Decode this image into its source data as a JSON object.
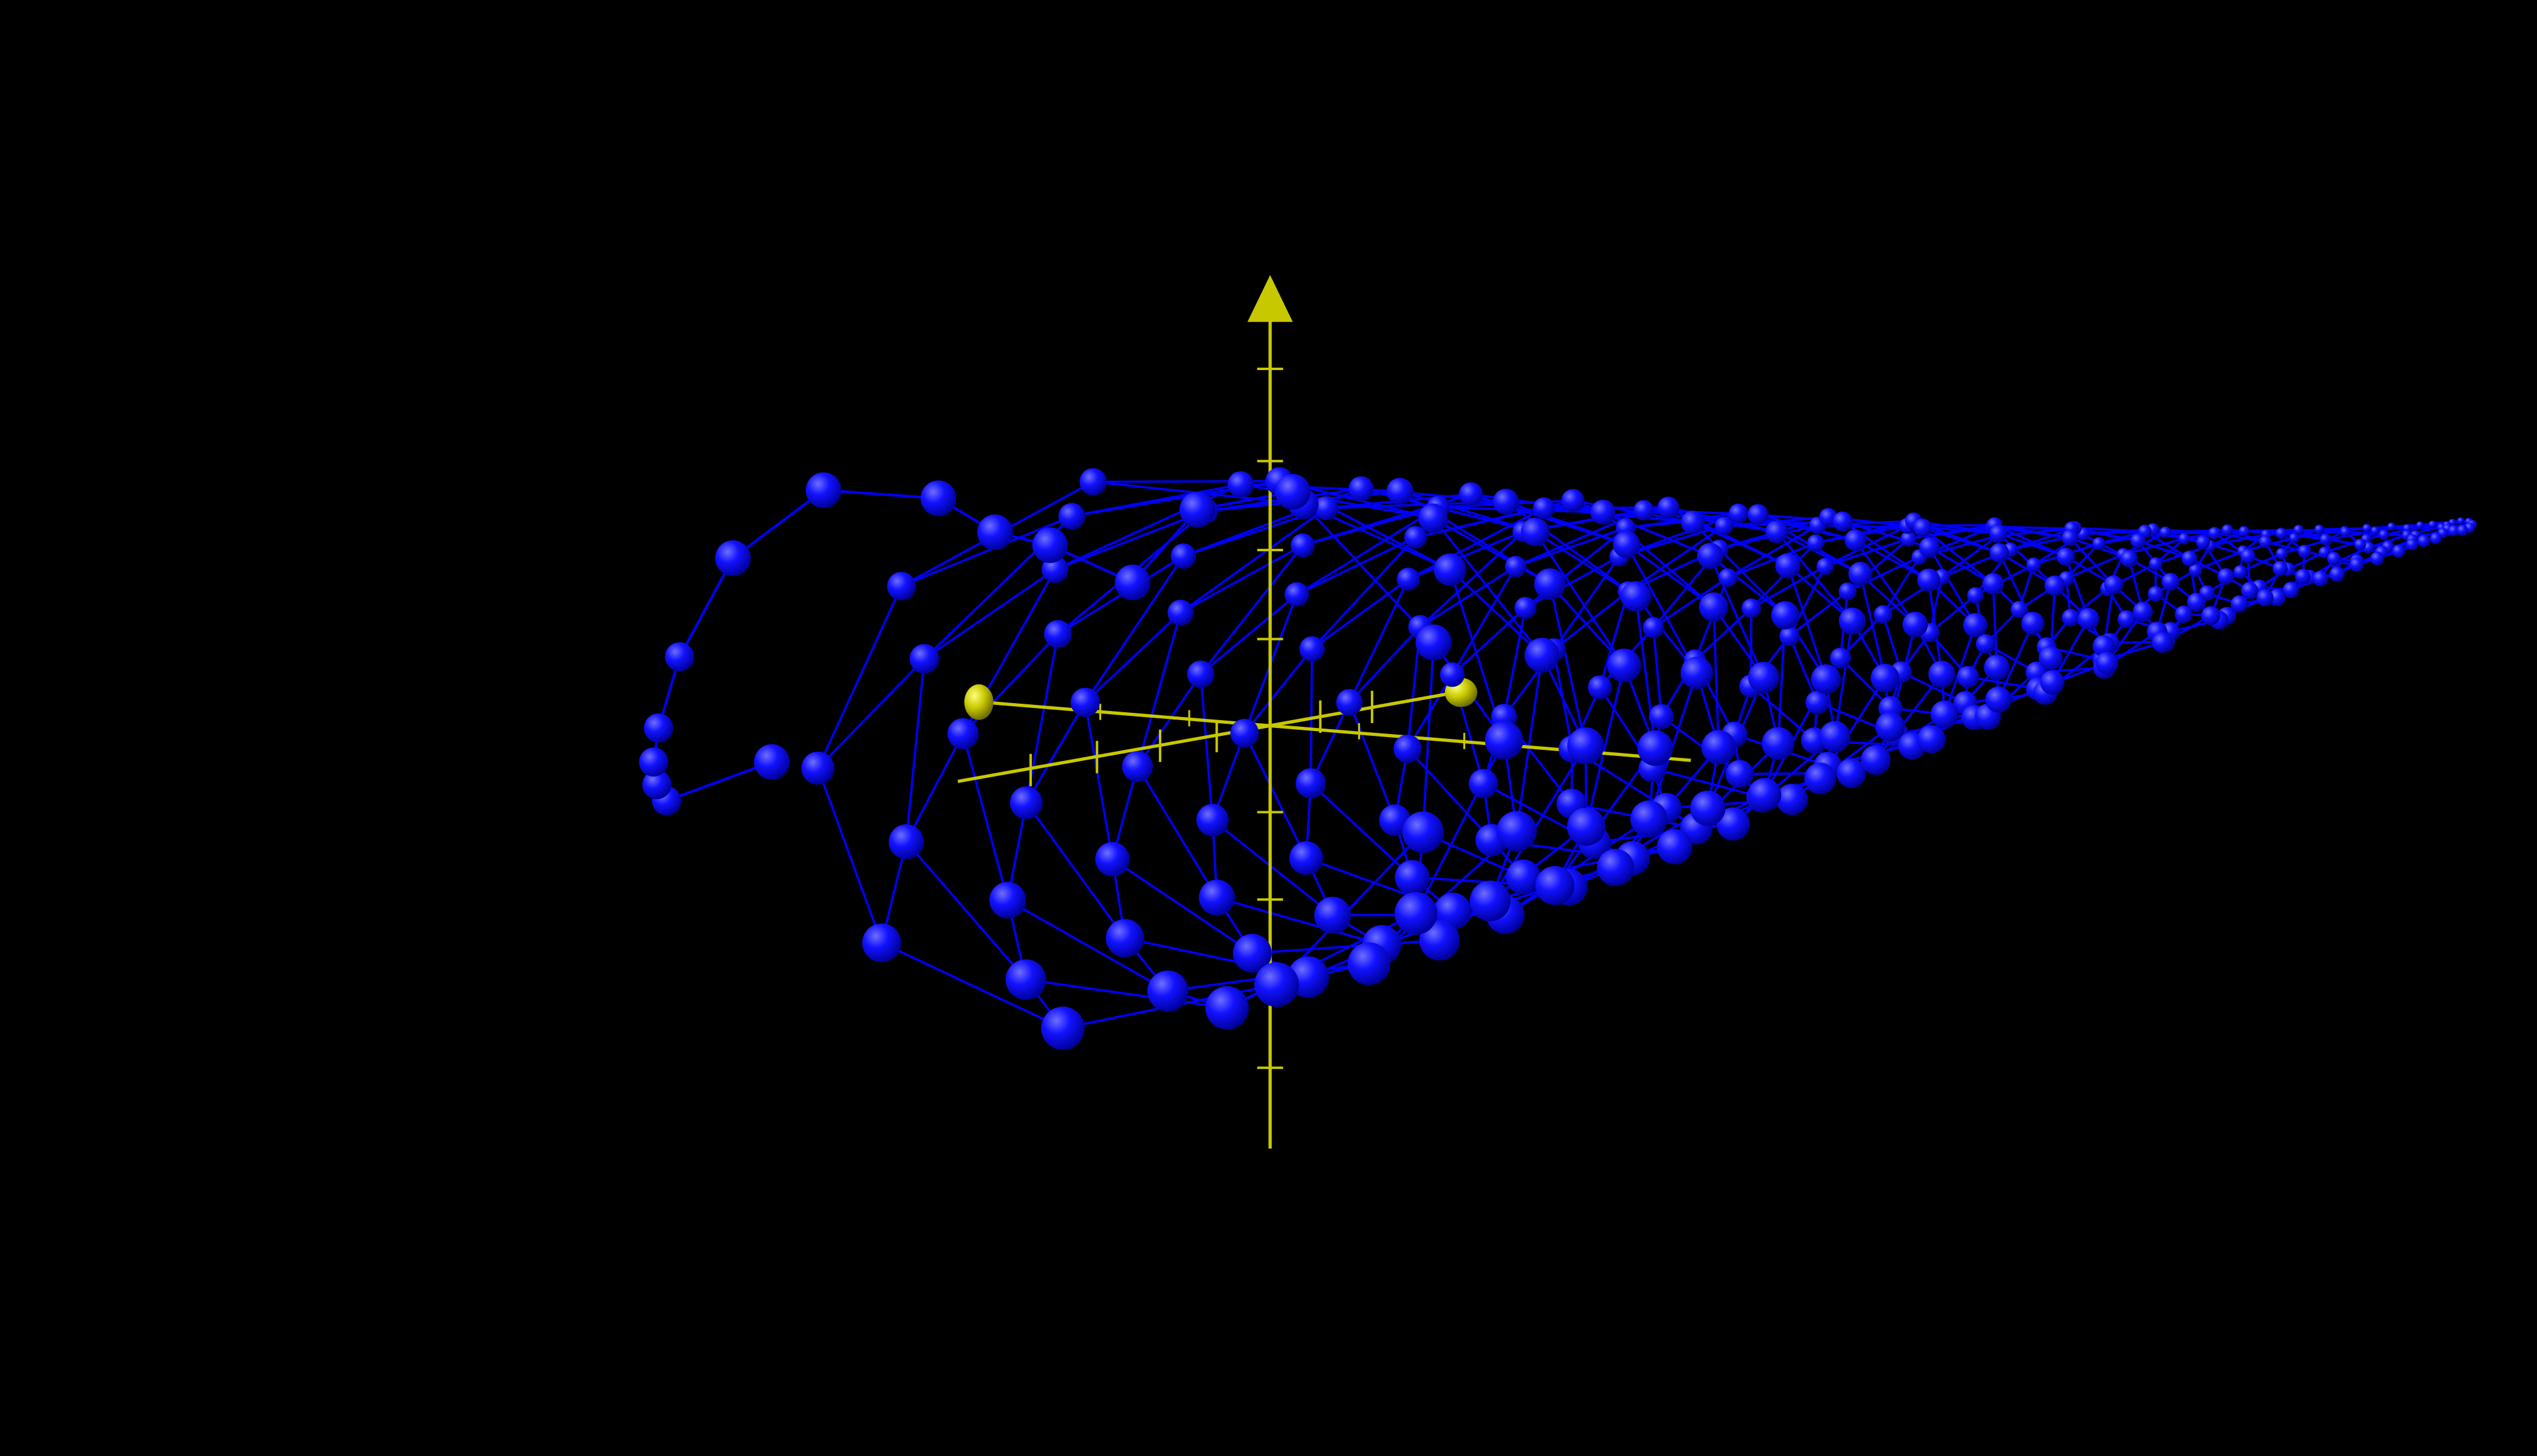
{
  "scene": {
    "background_color": "#000000",
    "surface_color": "#0000ff",
    "axes_color": "#c8c800",
    "axes": [
      {
        "name": "vertical",
        "arrow_head": "cone",
        "ticks": 8
      },
      {
        "name": "depth",
        "arrow_head": "sphere",
        "ticks": 6
      },
      {
        "name": "horizontal",
        "arrow_head": "sphere",
        "ticks": 5
      }
    ],
    "mesh": {
      "style": "wireframe with sphere nodes",
      "shape": "spiral surface curling into a tapering tail"
    }
  }
}
